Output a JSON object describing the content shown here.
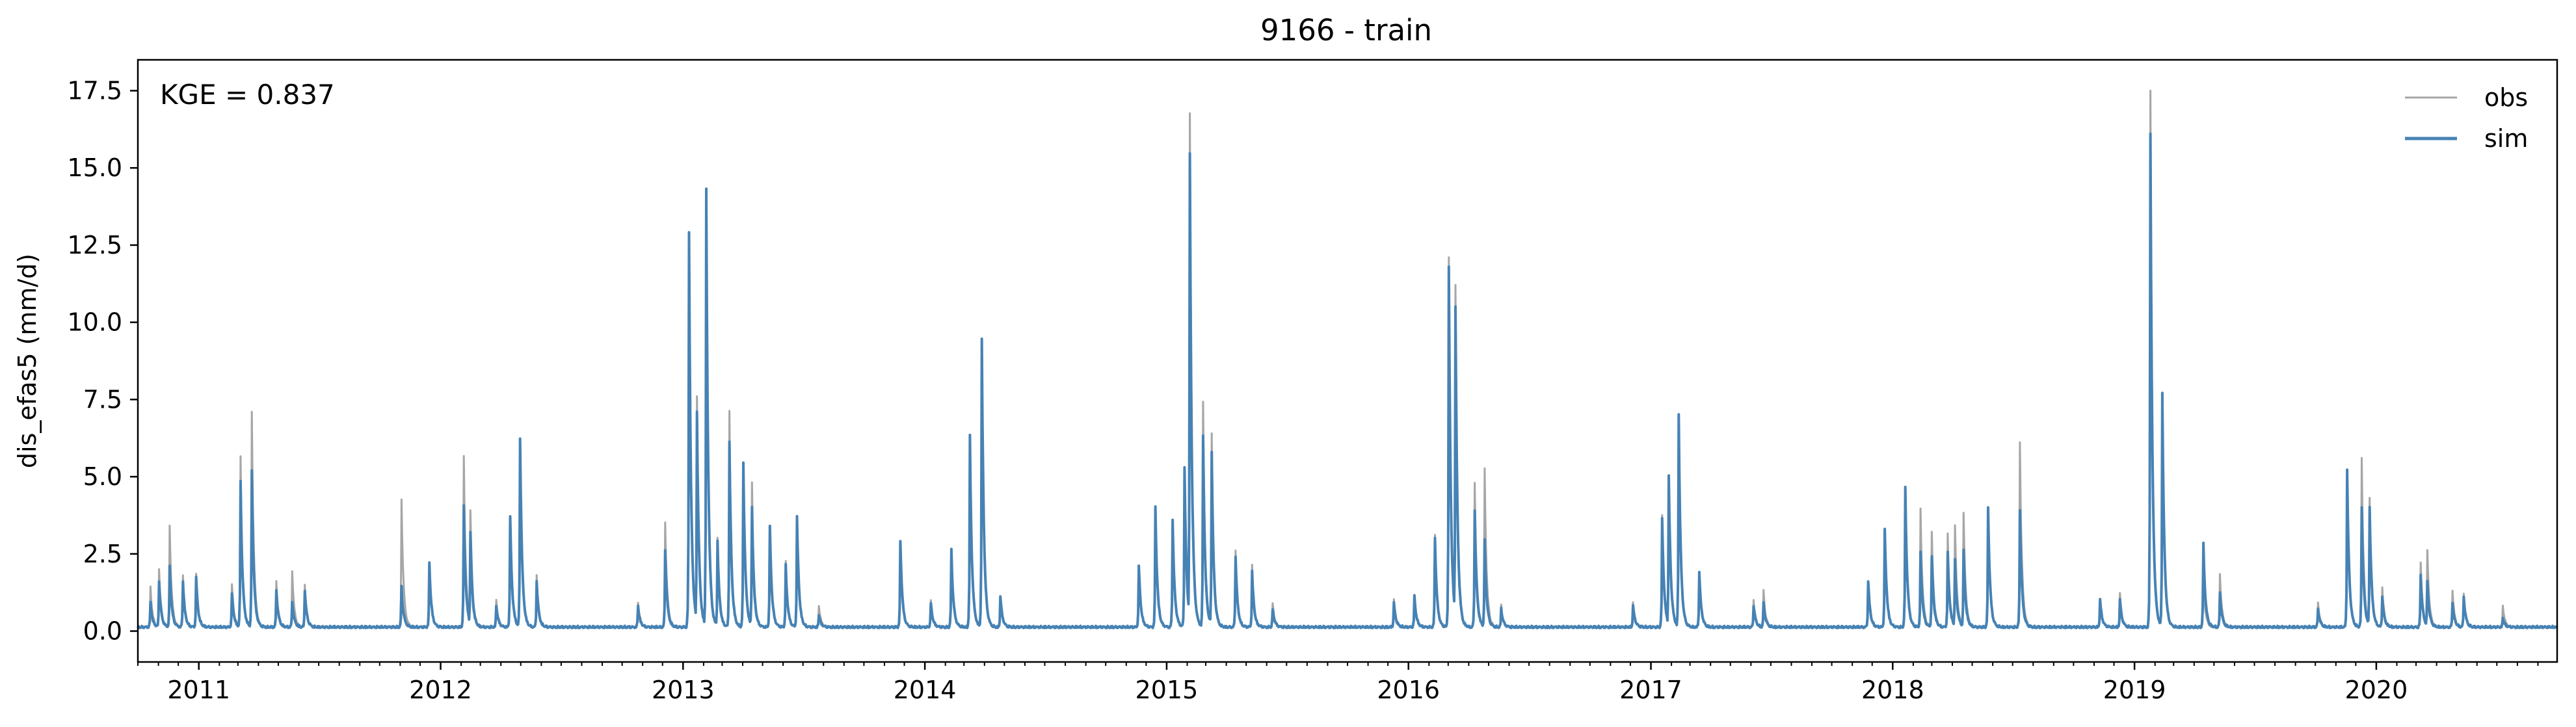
{
  "figure": {
    "title": "9166 - train",
    "annotation": "KGE = 0.837"
  },
  "chart_data": {
    "type": "line",
    "title": "9166 - train",
    "xlabel": "",
    "ylabel": "dis_efas5 (mm/d)",
    "xlim": [
      "2010-10-01",
      "2020-09-30"
    ],
    "ylim": [
      -1.0,
      18.5
    ],
    "x_ticks": [
      "2011",
      "2012",
      "2013",
      "2014",
      "2015",
      "2016",
      "2017",
      "2018",
      "2019",
      "2020"
    ],
    "y_ticks": [
      0.0,
      2.5,
      5.0,
      7.5,
      10.0,
      12.5,
      15.0,
      17.5
    ],
    "y_tick_labels": [
      "0.0",
      "2.5",
      "5.0",
      "7.5",
      "10.0",
      "12.5",
      "15.0",
      "17.5"
    ],
    "grid": false,
    "legend": {
      "position": "top-right",
      "entries": [
        "obs",
        "sim"
      ]
    },
    "baseline": 0.1,
    "series": [
      {
        "name": "obs",
        "color": "#a6a6a6",
        "peaks": [
          [
            "2010-10-20",
            1.4
          ],
          [
            "2010-11-02",
            2.0
          ],
          [
            "2010-11-18",
            3.4
          ],
          [
            "2010-12-08",
            1.8
          ],
          [
            "2010-12-28",
            1.8
          ],
          [
            "2011-02-20",
            1.5
          ],
          [
            "2011-03-05",
            5.6
          ],
          [
            "2011-03-22",
            7.1
          ],
          [
            "2011-04-28",
            1.6
          ],
          [
            "2011-05-22",
            1.9
          ],
          [
            "2011-06-10",
            1.5
          ],
          [
            "2011-11-03",
            4.2
          ],
          [
            "2011-12-15",
            2.1
          ],
          [
            "2012-02-05",
            5.6
          ],
          [
            "2012-02-15",
            3.9
          ],
          [
            "2012-03-25",
            1.0
          ],
          [
            "2012-04-15",
            3.6
          ],
          [
            "2012-04-30",
            6.1
          ],
          [
            "2012-05-25",
            1.8
          ],
          [
            "2012-10-25",
            0.9
          ],
          [
            "2012-12-05",
            3.5
          ],
          [
            "2013-01-10",
            12.8
          ],
          [
            "2013-01-22",
            7.6
          ],
          [
            "2013-02-05",
            14.1
          ],
          [
            "2013-02-22",
            3.0
          ],
          [
            "2013-03-12",
            7.1
          ],
          [
            "2013-04-02",
            5.3
          ],
          [
            "2013-04-15",
            4.8
          ],
          [
            "2013-05-12",
            3.4
          ],
          [
            "2013-06-05",
            2.2
          ],
          [
            "2013-06-22",
            3.7
          ],
          [
            "2013-07-25",
            0.8
          ],
          [
            "2013-11-25",
            2.8
          ],
          [
            "2014-01-10",
            1.0
          ],
          [
            "2014-02-10",
            2.6
          ],
          [
            "2014-03-10",
            6.1
          ],
          [
            "2014-03-28",
            9.3
          ],
          [
            "2014-04-25",
            1.0
          ],
          [
            "2014-11-20",
            2.0
          ],
          [
            "2014-12-15",
            3.9
          ],
          [
            "2015-01-10",
            3.5
          ],
          [
            "2015-01-28",
            5.2
          ],
          [
            "2015-02-05",
            16.7
          ],
          [
            "2015-02-25",
            7.4
          ],
          [
            "2015-03-10",
            6.4
          ],
          [
            "2015-04-15",
            2.6
          ],
          [
            "2015-05-10",
            2.1
          ],
          [
            "2015-06-10",
            0.9
          ],
          [
            "2015-12-10",
            1.0
          ],
          [
            "2016-01-10",
            1.0
          ],
          [
            "2016-02-10",
            3.1
          ],
          [
            "2016-03-02",
            12.1
          ],
          [
            "2016-03-12",
            11.2
          ],
          [
            "2016-04-10",
            4.8
          ],
          [
            "2016-04-25",
            5.2
          ],
          [
            "2016-05-20",
            0.8
          ],
          [
            "2016-12-05",
            0.9
          ],
          [
            "2017-01-18",
            3.7
          ],
          [
            "2017-01-28",
            5.0
          ],
          [
            "2017-02-12",
            6.9
          ],
          [
            "2017-03-15",
            1.9
          ],
          [
            "2017-06-05",
            1.0
          ],
          [
            "2017-06-20",
            1.3
          ],
          [
            "2017-11-25",
            1.6
          ],
          [
            "2017-12-20",
            3.2
          ],
          [
            "2018-01-20",
            4.6
          ],
          [
            "2018-02-12",
            3.9
          ],
          [
            "2018-03-01",
            3.2
          ],
          [
            "2018-03-25",
            3.1
          ],
          [
            "2018-04-05",
            3.4
          ],
          [
            "2018-04-18",
            3.8
          ],
          [
            "2018-05-25",
            4.0
          ],
          [
            "2018-07-12",
            6.1
          ],
          [
            "2018-11-10",
            1.0
          ],
          [
            "2018-12-10",
            1.2
          ],
          [
            "2019-01-25",
            17.5
          ],
          [
            "2019-02-12",
            7.6
          ],
          [
            "2019-04-15",
            1.6
          ],
          [
            "2019-05-10",
            1.8
          ],
          [
            "2019-10-05",
            0.9
          ],
          [
            "2019-11-18",
            5.2
          ],
          [
            "2019-12-10",
            5.6
          ],
          [
            "2019-12-22",
            4.3
          ],
          [
            "2020-01-10",
            1.4
          ],
          [
            "2020-03-08",
            2.2
          ],
          [
            "2020-03-18",
            2.6
          ],
          [
            "2020-04-25",
            1.3
          ],
          [
            "2020-05-12",
            1.2
          ],
          [
            "2020-07-10",
            0.8
          ]
        ]
      },
      {
        "name": "sim",
        "color": "#4682b4",
        "peaks": [
          [
            "2010-10-20",
            0.9
          ],
          [
            "2010-11-02",
            1.6
          ],
          [
            "2010-11-18",
            2.1
          ],
          [
            "2010-12-08",
            1.6
          ],
          [
            "2010-12-28",
            1.7
          ],
          [
            "2011-02-20",
            1.2
          ],
          [
            "2011-03-05",
            4.8
          ],
          [
            "2011-03-22",
            5.2
          ],
          [
            "2011-04-28",
            1.3
          ],
          [
            "2011-05-22",
            0.9
          ],
          [
            "2011-06-10",
            1.3
          ],
          [
            "2011-11-03",
            1.4
          ],
          [
            "2011-12-15",
            2.2
          ],
          [
            "2012-02-05",
            4.0
          ],
          [
            "2012-02-15",
            3.2
          ],
          [
            "2012-03-25",
            0.8
          ],
          [
            "2012-04-15",
            3.7
          ],
          [
            "2012-04-30",
            6.2
          ],
          [
            "2012-05-25",
            1.6
          ],
          [
            "2012-10-25",
            0.8
          ],
          [
            "2012-12-05",
            2.6
          ],
          [
            "2013-01-10",
            12.9
          ],
          [
            "2013-01-22",
            7.1
          ],
          [
            "2013-02-05",
            14.3
          ],
          [
            "2013-02-22",
            2.9
          ],
          [
            "2013-03-12",
            6.1
          ],
          [
            "2013-04-02",
            5.4
          ],
          [
            "2013-04-15",
            4.0
          ],
          [
            "2013-05-12",
            3.4
          ],
          [
            "2013-06-05",
            2.1
          ],
          [
            "2013-06-22",
            3.7
          ],
          [
            "2013-07-25",
            0.5
          ],
          [
            "2013-11-25",
            2.9
          ],
          [
            "2014-01-10",
            0.9
          ],
          [
            "2014-02-10",
            2.6
          ],
          [
            "2014-03-10",
            6.3
          ],
          [
            "2014-03-28",
            9.4
          ],
          [
            "2014-04-25",
            1.1
          ],
          [
            "2014-11-20",
            2.1
          ],
          [
            "2014-12-15",
            4.0
          ],
          [
            "2015-01-10",
            3.6
          ],
          [
            "2015-01-28",
            5.3
          ],
          [
            "2015-02-05",
            15.4
          ],
          [
            "2015-02-25",
            6.3
          ],
          [
            "2015-03-10",
            5.8
          ],
          [
            "2015-04-15",
            2.4
          ],
          [
            "2015-05-10",
            1.9
          ],
          [
            "2015-06-10",
            0.7
          ],
          [
            "2015-12-10",
            0.9
          ],
          [
            "2016-01-10",
            1.1
          ],
          [
            "2016-02-10",
            3.0
          ],
          [
            "2016-03-02",
            11.8
          ],
          [
            "2016-03-12",
            10.5
          ],
          [
            "2016-04-10",
            3.9
          ],
          [
            "2016-04-25",
            2.9
          ],
          [
            "2016-05-20",
            0.7
          ],
          [
            "2016-12-05",
            0.8
          ],
          [
            "2017-01-18",
            3.6
          ],
          [
            "2017-01-28",
            5.0
          ],
          [
            "2017-02-12",
            7.0
          ],
          [
            "2017-03-15",
            1.9
          ],
          [
            "2017-06-05",
            0.8
          ],
          [
            "2017-06-20",
            0.9
          ],
          [
            "2017-11-25",
            1.6
          ],
          [
            "2017-12-20",
            3.3
          ],
          [
            "2018-01-20",
            4.6
          ],
          [
            "2018-02-12",
            2.5
          ],
          [
            "2018-03-01",
            2.4
          ],
          [
            "2018-03-25",
            2.5
          ],
          [
            "2018-04-05",
            2.3
          ],
          [
            "2018-04-18",
            2.6
          ],
          [
            "2018-05-25",
            4.0
          ],
          [
            "2018-07-12",
            3.9
          ],
          [
            "2018-11-10",
            1.0
          ],
          [
            "2018-12-10",
            1.0
          ],
          [
            "2019-01-25",
            16.1
          ],
          [
            "2019-02-12",
            7.7
          ],
          [
            "2019-04-15",
            2.8
          ],
          [
            "2019-05-10",
            1.2
          ],
          [
            "2019-10-05",
            0.7
          ],
          [
            "2019-11-18",
            5.2
          ],
          [
            "2019-12-10",
            4.0
          ],
          [
            "2019-12-22",
            4.0
          ],
          [
            "2020-01-10",
            1.1
          ],
          [
            "2020-03-08",
            1.8
          ],
          [
            "2020-03-18",
            1.6
          ],
          [
            "2020-04-25",
            0.9
          ],
          [
            "2020-05-12",
            1.1
          ],
          [
            "2020-07-10",
            0.4
          ]
        ]
      }
    ]
  }
}
